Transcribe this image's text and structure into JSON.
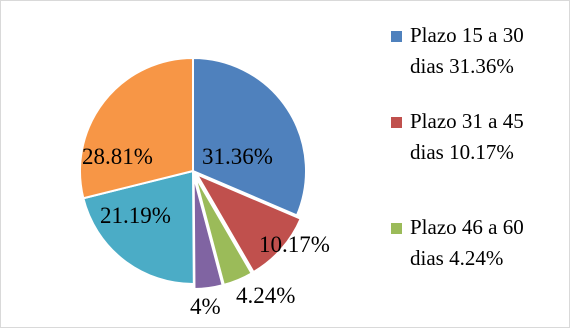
{
  "chart_data": {
    "type": "pie",
    "title": "",
    "slices": [
      {
        "label": "Plazo 15 a 30 dias",
        "value": 31.36,
        "data_label": "31.36%",
        "color": "#4f81bd"
      },
      {
        "label": "Plazo 31 a 45 dias",
        "value": 10.17,
        "data_label": "10.17%",
        "color": "#c0504d"
      },
      {
        "label": "Plazo 46 a 60 dias",
        "value": 4.24,
        "data_label": "4.24%",
        "color": "#9bbb59"
      },
      {
        "label": "",
        "value": 4,
        "data_label": "4%",
        "color": "#8064a2"
      },
      {
        "label": "",
        "value": 21.19,
        "data_label": "21.19%",
        "color": "#4bacc6"
      },
      {
        "label": "",
        "value": 28.81,
        "data_label": "28.81%",
        "color": "#f79646"
      }
    ],
    "legend": {
      "position": "right",
      "entries": [
        {
          "line1": "Plazo 15 a 30",
          "line2": "dias 31.36%",
          "color": "#4f81bd"
        },
        {
          "line1": "Plazo 31 a 45",
          "line2": "dias 10.17%",
          "color": "#c0504d"
        },
        {
          "line1": "Plazo 46 a 60",
          "line2": "dias 4.24%",
          "color": "#9bbb59"
        }
      ]
    }
  }
}
